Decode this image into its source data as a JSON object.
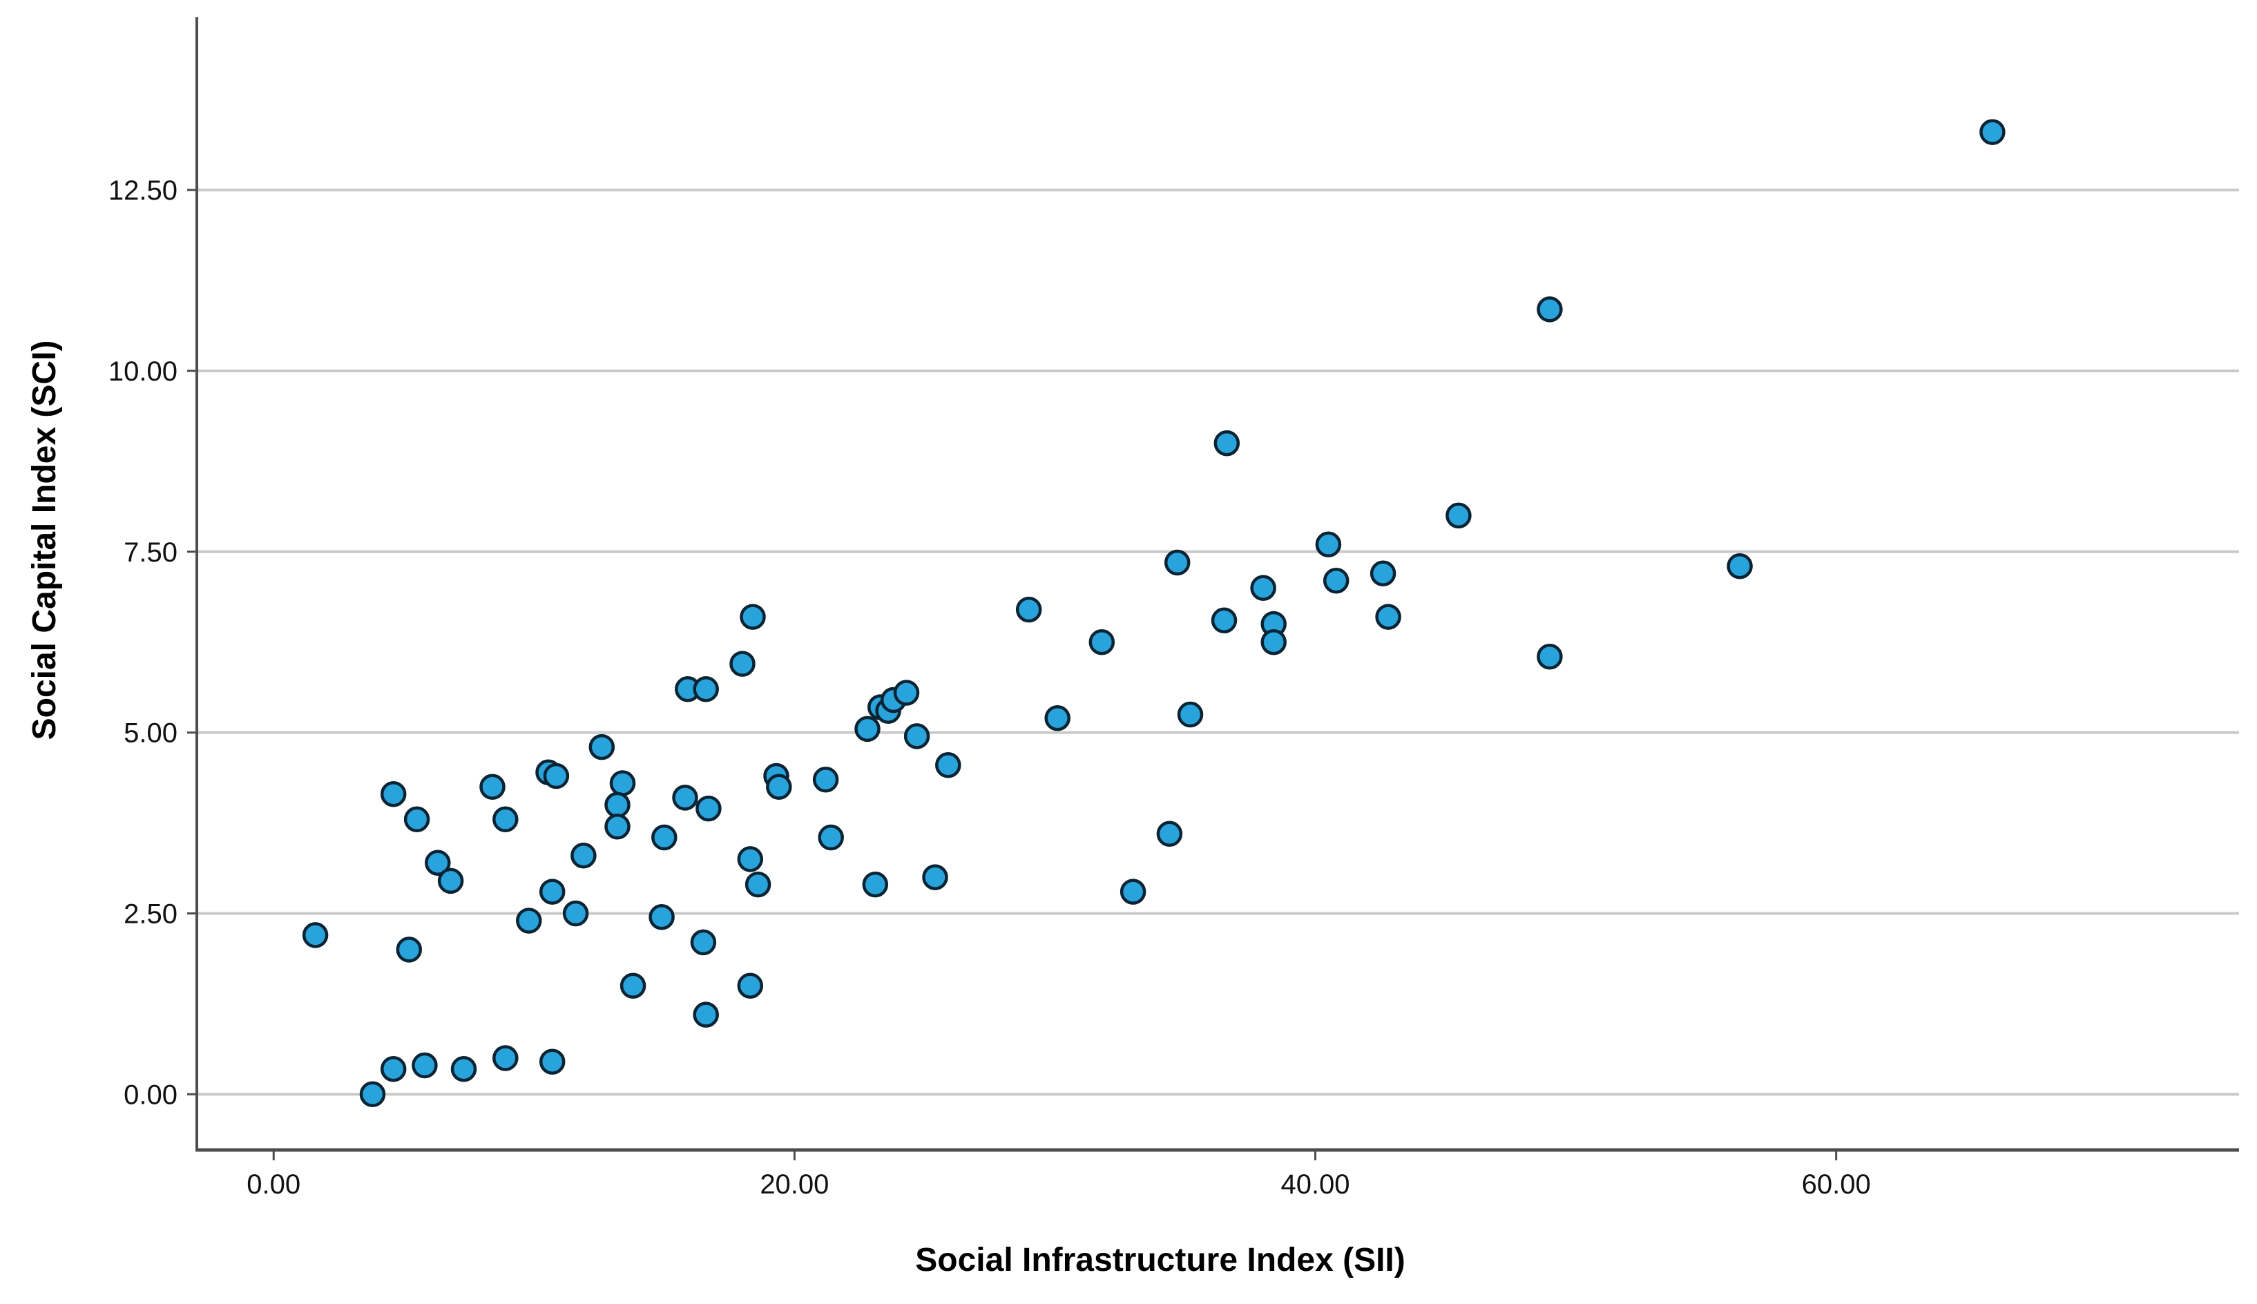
{
  "chart_data": {
    "type": "scatter",
    "title": "",
    "xlabel": "Social Infrastructure Index (SII)",
    "ylabel": "Social Capital Index (SCI)",
    "xlim": [
      -2.95,
      75.55
    ],
    "ylim": [
      -0.77,
      14.84
    ],
    "grid": "horizontal-only",
    "legend": "none",
    "x_ticks": [
      {
        "value": 0,
        "label": "0.00"
      },
      {
        "value": 20,
        "label": "20.00"
      },
      {
        "value": 40,
        "label": "40.00"
      },
      {
        "value": 60,
        "label": "60.00"
      }
    ],
    "y_ticks": [
      {
        "value": 0,
        "label": "0.00"
      },
      {
        "value": 2.5,
        "label": "2.50"
      },
      {
        "value": 5,
        "label": "5.00"
      },
      {
        "value": 7.5,
        "label": "7.50"
      },
      {
        "value": 10,
        "label": "10.00"
      },
      {
        "value": 12.5,
        "label": "12.50"
      }
    ],
    "point_style": {
      "fill": "#29A3DB",
      "stroke": "#0B2433",
      "radius_px": 16.5,
      "stroke_width_px": 4.5
    },
    "colors": {
      "background": "#FFFFFF",
      "gridline": "#C9C9C9",
      "axis_line": "#4D4D4D",
      "tick_mark": "#4D4D4D",
      "tick_label": "#111111",
      "title": "#000000"
    },
    "points": [
      [
        1.6,
        2.2
      ],
      [
        3.8,
        0.0
      ],
      [
        4.6,
        0.35
      ],
      [
        5.8,
        0.4
      ],
      [
        7.3,
        0.35
      ],
      [
        8.9,
        0.5
      ],
      [
        10.7,
        0.45
      ],
      [
        5.2,
        2.0
      ],
      [
        4.6,
        4.15
      ],
      [
        5.5,
        3.8
      ],
      [
        6.3,
        3.2
      ],
      [
        6.8,
        2.95
      ],
      [
        8.4,
        4.25
      ],
      [
        8.9,
        3.8
      ],
      [
        9.8,
        2.4
      ],
      [
        10.7,
        2.8
      ],
      [
        11.6,
        2.5
      ],
      [
        10.55,
        4.45
      ],
      [
        10.85,
        4.4
      ],
      [
        11.9,
        3.3
      ],
      [
        12.6,
        4.8
      ],
      [
        13.4,
        4.3
      ],
      [
        13.2,
        4.0
      ],
      [
        13.2,
        3.7
      ],
      [
        13.8,
        1.5
      ],
      [
        14.9,
        2.45
      ],
      [
        15.8,
        4.1
      ],
      [
        15.0,
        3.55
      ],
      [
        16.5,
        2.1
      ],
      [
        16.6,
        1.1
      ],
      [
        15.9,
        5.6
      ],
      [
        16.6,
        5.6
      ],
      [
        16.7,
        3.95
      ],
      [
        18.0,
        5.95
      ],
      [
        18.4,
        6.6
      ],
      [
        18.3,
        3.25
      ],
      [
        18.6,
        2.9
      ],
      [
        18.3,
        1.5
      ],
      [
        19.3,
        4.4
      ],
      [
        19.4,
        4.25
      ],
      [
        21.2,
        4.35
      ],
      [
        21.4,
        3.55
      ],
      [
        23.1,
        2.9
      ],
      [
        22.8,
        5.05
      ],
      [
        23.3,
        5.35
      ],
      [
        23.6,
        5.3
      ],
      [
        23.8,
        5.45
      ],
      [
        24.3,
        5.55
      ],
      [
        24.7,
        4.95
      ],
      [
        25.9,
        4.55
      ],
      [
        25.4,
        3.0
      ],
      [
        29.0,
        6.7
      ],
      [
        30.1,
        5.2
      ],
      [
        31.8,
        6.25
      ],
      [
        33.0,
        2.8
      ],
      [
        34.4,
        3.6
      ],
      [
        35.2,
        5.25
      ],
      [
        34.7,
        7.35
      ],
      [
        36.6,
        9.0
      ],
      [
        36.5,
        6.55
      ],
      [
        38.0,
        7.0
      ],
      [
        38.4,
        6.5
      ],
      [
        38.4,
        6.25
      ],
      [
        40.5,
        7.6
      ],
      [
        40.8,
        7.1
      ],
      [
        42.6,
        7.2
      ],
      [
        42.8,
        6.6
      ],
      [
        45.5,
        8.0
      ],
      [
        49.0,
        10.85
      ],
      [
        49.0,
        6.05
      ],
      [
        56.3,
        7.3
      ],
      [
        66.0,
        13.3
      ]
    ]
  }
}
